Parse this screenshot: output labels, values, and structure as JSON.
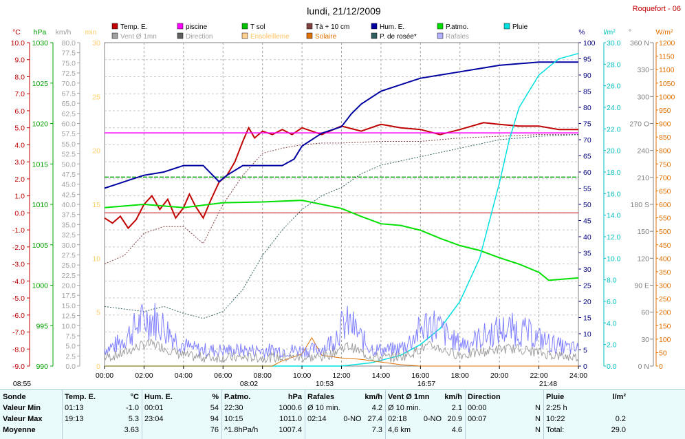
{
  "header": {
    "title": "lundi, 21/12/2009",
    "station": "Roquefort - 06"
  },
  "axes": {
    "temp": {
      "unit": "°C",
      "color": "#c00000",
      "range": [
        -9,
        10
      ],
      "step": 1
    },
    "hpa": {
      "unit": "hPa",
      "color": "#00a000",
      "range": [
        990,
        1030
      ],
      "step": 5
    },
    "kmh": {
      "unit": "km/h",
      "color": "#a0a0a0",
      "range": [
        0,
        80
      ],
      "step": 2.5
    },
    "min": {
      "unit": "min",
      "color": "#ffcc66",
      "range": [
        0,
        30
      ],
      "step": 5
    },
    "pct": {
      "unit": "%",
      "color": "#000080",
      "range": [
        0,
        100
      ],
      "step": 5
    },
    "lm2": {
      "unit": "l/m²",
      "color": "#00c0c0",
      "range": [
        0,
        30
      ],
      "step": 2
    },
    "deg": {
      "unit": "°",
      "color": "#808080",
      "ticks": [
        "0 N",
        "30",
        "60",
        "90 E",
        "120",
        "150",
        "180 S",
        "210",
        "240",
        "270 O",
        "300",
        "330",
        "360 N"
      ]
    },
    "wm2": {
      "unit": "W/m²",
      "color": "#e07000",
      "range": [
        0,
        1200
      ],
      "step": 50
    },
    "time": {
      "ticks": [
        "00:00",
        "02:00",
        "04:00",
        "06:00",
        "08:00",
        "10:00",
        "12:00",
        "14:00",
        "16:00",
        "18:00",
        "20:00",
        "22:00",
        "24:00"
      ]
    }
  },
  "markers": {
    "sunrise_prev": "08:55",
    "sunrise": "08:02",
    "noon": "10:53",
    "sunset": "16:57",
    "moon": "21:48"
  },
  "legend": [
    {
      "label": "Temp. E.",
      "color": "#c00000"
    },
    {
      "label": "piscine",
      "color": "#ff00ff"
    },
    {
      "label": "T sol",
      "color": "#00c000"
    },
    {
      "label": "Tà + 10 cm",
      "color": "#804040"
    },
    {
      "label": "Hum. E.",
      "color": "#0000a0"
    },
    {
      "label": "P.atmo.",
      "color": "#00e000"
    },
    {
      "label": "Pluie",
      "color": "#00e0e0"
    },
    {
      "label": "Vent Ø 1mn",
      "color": "#a0a0a0"
    },
    {
      "label": "Direction",
      "color": "#606060"
    },
    {
      "label": "Ensoleilleme",
      "color": "#ffd090"
    },
    {
      "label": "Solaire",
      "color": "#e07000"
    },
    {
      "label": "P. de rosée*",
      "color": "#306060"
    },
    {
      "label": "Rafales",
      "color": "#b0b0ff"
    }
  ],
  "chart_data": {
    "type": "line",
    "x_unit": "hour",
    "series": [
      {
        "name": "Temp. E.",
        "axis": "temp",
        "points": [
          [
            0,
            -0.3
          ],
          [
            0.4,
            -0.6
          ],
          [
            0.8,
            -0.2
          ],
          [
            1.2,
            -0.9
          ],
          [
            1.6,
            -0.4
          ],
          [
            2.0,
            0.5
          ],
          [
            2.4,
            1.0
          ],
          [
            2.8,
            0.2
          ],
          [
            3.2,
            0.8
          ],
          [
            3.6,
            -0.3
          ],
          [
            4.0,
            0.3
          ],
          [
            4.3,
            1.1
          ],
          [
            4.6,
            0.4
          ],
          [
            5.0,
            -0.3
          ],
          [
            5.4,
            0.8
          ],
          [
            5.8,
            1.8
          ],
          [
            6.2,
            2.2
          ],
          [
            6.6,
            3.0
          ],
          [
            7.0,
            4.2
          ],
          [
            7.3,
            5.0
          ],
          [
            7.6,
            4.4
          ],
          [
            8.0,
            4.8
          ],
          [
            8.5,
            4.6
          ],
          [
            9.0,
            4.9
          ],
          [
            9.5,
            4.6
          ],
          [
            10.0,
            5.0
          ],
          [
            11.0,
            4.6
          ],
          [
            12.0,
            5.1
          ],
          [
            13.0,
            4.8
          ],
          [
            14.0,
            5.2
          ],
          [
            15.0,
            5.0
          ],
          [
            16.0,
            4.9
          ],
          [
            17.0,
            4.6
          ],
          [
            18.0,
            4.9
          ],
          [
            19.2,
            5.3
          ],
          [
            20.0,
            5.2
          ],
          [
            21.0,
            5.1
          ],
          [
            22.0,
            5.1
          ],
          [
            23.0,
            4.9
          ],
          [
            24.0,
            4.9
          ]
        ]
      },
      {
        "name": "piscine",
        "axis": "temp",
        "points": [
          [
            0,
            4.7
          ],
          [
            24,
            4.7
          ]
        ]
      },
      {
        "name": "T sol",
        "axis": "temp",
        "points": [
          [
            0,
            2.1
          ],
          [
            24,
            2.1
          ]
        ]
      },
      {
        "name": "Tà + 10 cm",
        "axis": "temp",
        "points": [
          [
            0,
            -3.0
          ],
          [
            1,
            -2.5
          ],
          [
            2,
            -1.2
          ],
          [
            3,
            -0.8
          ],
          [
            4,
            -0.8
          ],
          [
            5,
            -1.8
          ],
          [
            6,
            0.5
          ],
          [
            7,
            2.2
          ],
          [
            8,
            3.5
          ],
          [
            9,
            3.8
          ],
          [
            10,
            4.0
          ],
          [
            11,
            4.1
          ],
          [
            12,
            4.1
          ],
          [
            14,
            4.2
          ],
          [
            16,
            4.2
          ],
          [
            18,
            4.4
          ],
          [
            20,
            4.5
          ],
          [
            22,
            4.6
          ],
          [
            24,
            4.6
          ]
        ]
      },
      {
        "name": "Hum. E.",
        "axis": "pct",
        "points": [
          [
            0,
            55
          ],
          [
            0.5,
            56
          ],
          [
            1,
            57
          ],
          [
            2,
            59
          ],
          [
            3,
            60
          ],
          [
            4,
            62
          ],
          [
            5,
            62
          ],
          [
            5.8,
            57
          ],
          [
            6.2,
            59
          ],
          [
            7,
            62
          ],
          [
            8,
            62
          ],
          [
            9,
            62
          ],
          [
            9.6,
            64
          ],
          [
            10,
            68
          ],
          [
            11,
            72
          ],
          [
            12,
            74
          ],
          [
            12.5,
            78
          ],
          [
            13,
            81
          ],
          [
            14,
            85
          ],
          [
            15,
            87
          ],
          [
            16,
            89
          ],
          [
            17,
            90
          ],
          [
            18,
            91
          ],
          [
            19,
            92
          ],
          [
            20,
            93
          ],
          [
            22,
            94
          ],
          [
            24,
            94
          ]
        ]
      },
      {
        "name": "P.atmo.",
        "axis": "hpa",
        "points": [
          [
            0,
            1009.6
          ],
          [
            2,
            1010.0
          ],
          [
            4,
            1009.6
          ],
          [
            6,
            1010.2
          ],
          [
            8,
            1010.3
          ],
          [
            10,
            1010.5
          ],
          [
            11,
            1010.0
          ],
          [
            12,
            1009.5
          ],
          [
            13,
            1008.5
          ],
          [
            14,
            1007.6
          ],
          [
            15,
            1007.4
          ],
          [
            16,
            1006.8
          ],
          [
            17,
            1005.8
          ],
          [
            18,
            1004.9
          ],
          [
            19,
            1004.3
          ],
          [
            20,
            1003.4
          ],
          [
            21,
            1002.6
          ],
          [
            22,
            1001.6
          ],
          [
            22.5,
            1000.6
          ],
          [
            24,
            1000.9
          ]
        ]
      },
      {
        "name": "Pluie",
        "axis": "lm2",
        "points": [
          [
            0,
            0
          ],
          [
            12,
            0
          ],
          [
            13.5,
            0.3
          ],
          [
            15,
            1.0
          ],
          [
            16,
            2.0
          ],
          [
            17,
            3.5
          ],
          [
            18,
            6.0
          ],
          [
            19,
            10.0
          ],
          [
            20,
            17.0
          ],
          [
            20.5,
            21.0
          ],
          [
            21,
            24.0
          ],
          [
            22,
            27.0
          ],
          [
            23,
            28.5
          ],
          [
            24,
            29.0
          ]
        ]
      },
      {
        "name": "P. de rosée*",
        "axis": "temp",
        "points": [
          [
            0,
            -5.5
          ],
          [
            2,
            -5.8
          ],
          [
            3,
            -5.5
          ],
          [
            4,
            -5.9
          ],
          [
            5,
            -6.2
          ],
          [
            6,
            -5.8
          ],
          [
            7,
            -4.5
          ],
          [
            8,
            -2.5
          ],
          [
            9,
            -1.0
          ],
          [
            10,
            0.2
          ],
          [
            11,
            1.0
          ],
          [
            12,
            1.5
          ],
          [
            13,
            2.3
          ],
          [
            14,
            2.8
          ],
          [
            16,
            3.3
          ],
          [
            18,
            3.8
          ],
          [
            20,
            4.3
          ],
          [
            22,
            4.5
          ],
          [
            24,
            4.6
          ]
        ]
      },
      {
        "name": "Solaire",
        "axis": "wm2",
        "points": [
          [
            0,
            0
          ],
          [
            8.5,
            0
          ],
          [
            9,
            20
          ],
          [
            10,
            45
          ],
          [
            10.5,
            105
          ],
          [
            11,
            40
          ],
          [
            12,
            30
          ],
          [
            13,
            25
          ],
          [
            14,
            15
          ],
          [
            15,
            5
          ],
          [
            16,
            0
          ],
          [
            24,
            0
          ]
        ]
      }
    ],
    "wind": {
      "axis": "kmh",
      "gust_peak": 27.4,
      "avg_peak": 20.9
    }
  },
  "stats": {
    "rows": [
      "Sonde",
      "Valeur Min",
      "Valeur Max",
      "Moyenne"
    ],
    "columns": [
      {
        "title": "Temp. E.",
        "unit": "°C",
        "cells": [
          [
            "01:13",
            "-1.0"
          ],
          [
            "19:13",
            "5.3"
          ],
          [
            "",
            "3.63"
          ]
        ]
      },
      {
        "title": "Hum. E.",
        "unit": "%",
        "cells": [
          [
            "00:01",
            "54"
          ],
          [
            "23:04",
            "94"
          ],
          [
            "",
            "76"
          ]
        ]
      },
      {
        "title": "P.atmo.",
        "unit": "hPa",
        "cells": [
          [
            "22:30",
            "1000.6"
          ],
          [
            "10:15",
            "1011.0"
          ],
          [
            "^1.8hPa/h",
            "1007.4"
          ]
        ]
      },
      {
        "title": "Rafales",
        "unit": "km/h",
        "cells": [
          [
            "Ø 10 min.",
            "",
            "4.2"
          ],
          [
            "02:14",
            "0-NO",
            "27.4"
          ],
          [
            "",
            "",
            "7.3"
          ]
        ]
      },
      {
        "title": "Vent Ø 1mn",
        "unit": "km/h",
        "cells": [
          [
            "Ø 10 min.",
            "",
            "2.1"
          ],
          [
            "02:18",
            "0-NO",
            "20.9"
          ],
          [
            "4,6 km",
            "",
            "4.6"
          ]
        ]
      },
      {
        "title": "Direction",
        "unit": "",
        "cells": [
          [
            "00:00",
            "N"
          ],
          [
            "00:07",
            "N"
          ],
          [
            "",
            "N"
          ]
        ]
      },
      {
        "title": "Pluie",
        "unit": "l/m²",
        "cells": [
          [
            "2:25 h",
            ""
          ],
          [
            "10:22",
            "0.2"
          ],
          [
            "Total:",
            "29.0"
          ]
        ]
      }
    ]
  }
}
